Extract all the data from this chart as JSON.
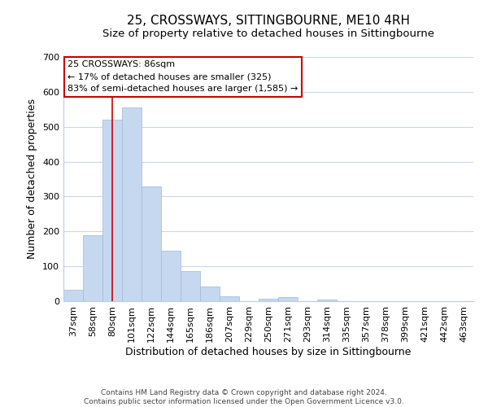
{
  "title": "25, CROSSWAYS, SITTINGBOURNE, ME10 4RH",
  "subtitle": "Size of property relative to detached houses in Sittingbourne",
  "xlabel": "Distribution of detached houses by size in Sittingbourne",
  "ylabel": "Number of detached properties",
  "footer_line1": "Contains HM Land Registry data © Crown copyright and database right 2024.",
  "footer_line2": "Contains public sector information licensed under the Open Government Licence v3.0.",
  "categories": [
    "37sqm",
    "58sqm",
    "80sqm",
    "101sqm",
    "122sqm",
    "144sqm",
    "165sqm",
    "186sqm",
    "207sqm",
    "229sqm",
    "250sqm",
    "271sqm",
    "293sqm",
    "314sqm",
    "335sqm",
    "357sqm",
    "378sqm",
    "399sqm",
    "421sqm",
    "442sqm",
    "463sqm"
  ],
  "values": [
    33,
    190,
    520,
    555,
    328,
    144,
    86,
    41,
    14,
    0,
    8,
    11,
    0,
    4,
    0,
    0,
    0,
    0,
    0,
    0,
    0
  ],
  "bar_color": "#c5d8f0",
  "bar_edge_color": "#a0b8d8",
  "vline_x_index": 2,
  "vline_color": "#cc0000",
  "annotation_title": "25 CROSSWAYS: 86sqm",
  "annotation_line1": "← 17% of detached houses are smaller (325)",
  "annotation_line2": "83% of semi-detached houses are larger (1,585) →",
  "annotation_box_color": "#ffffff",
  "annotation_box_edge": "#cc0000",
  "ylim": [
    0,
    700
  ],
  "yticks": [
    0,
    100,
    200,
    300,
    400,
    500,
    600,
    700
  ],
  "background_color": "#ffffff",
  "grid_color": "#c8d8e8",
  "title_fontsize": 11,
  "subtitle_fontsize": 9.5,
  "axis_label_fontsize": 9,
  "tick_fontsize": 8,
  "footer_fontsize": 6.5
}
